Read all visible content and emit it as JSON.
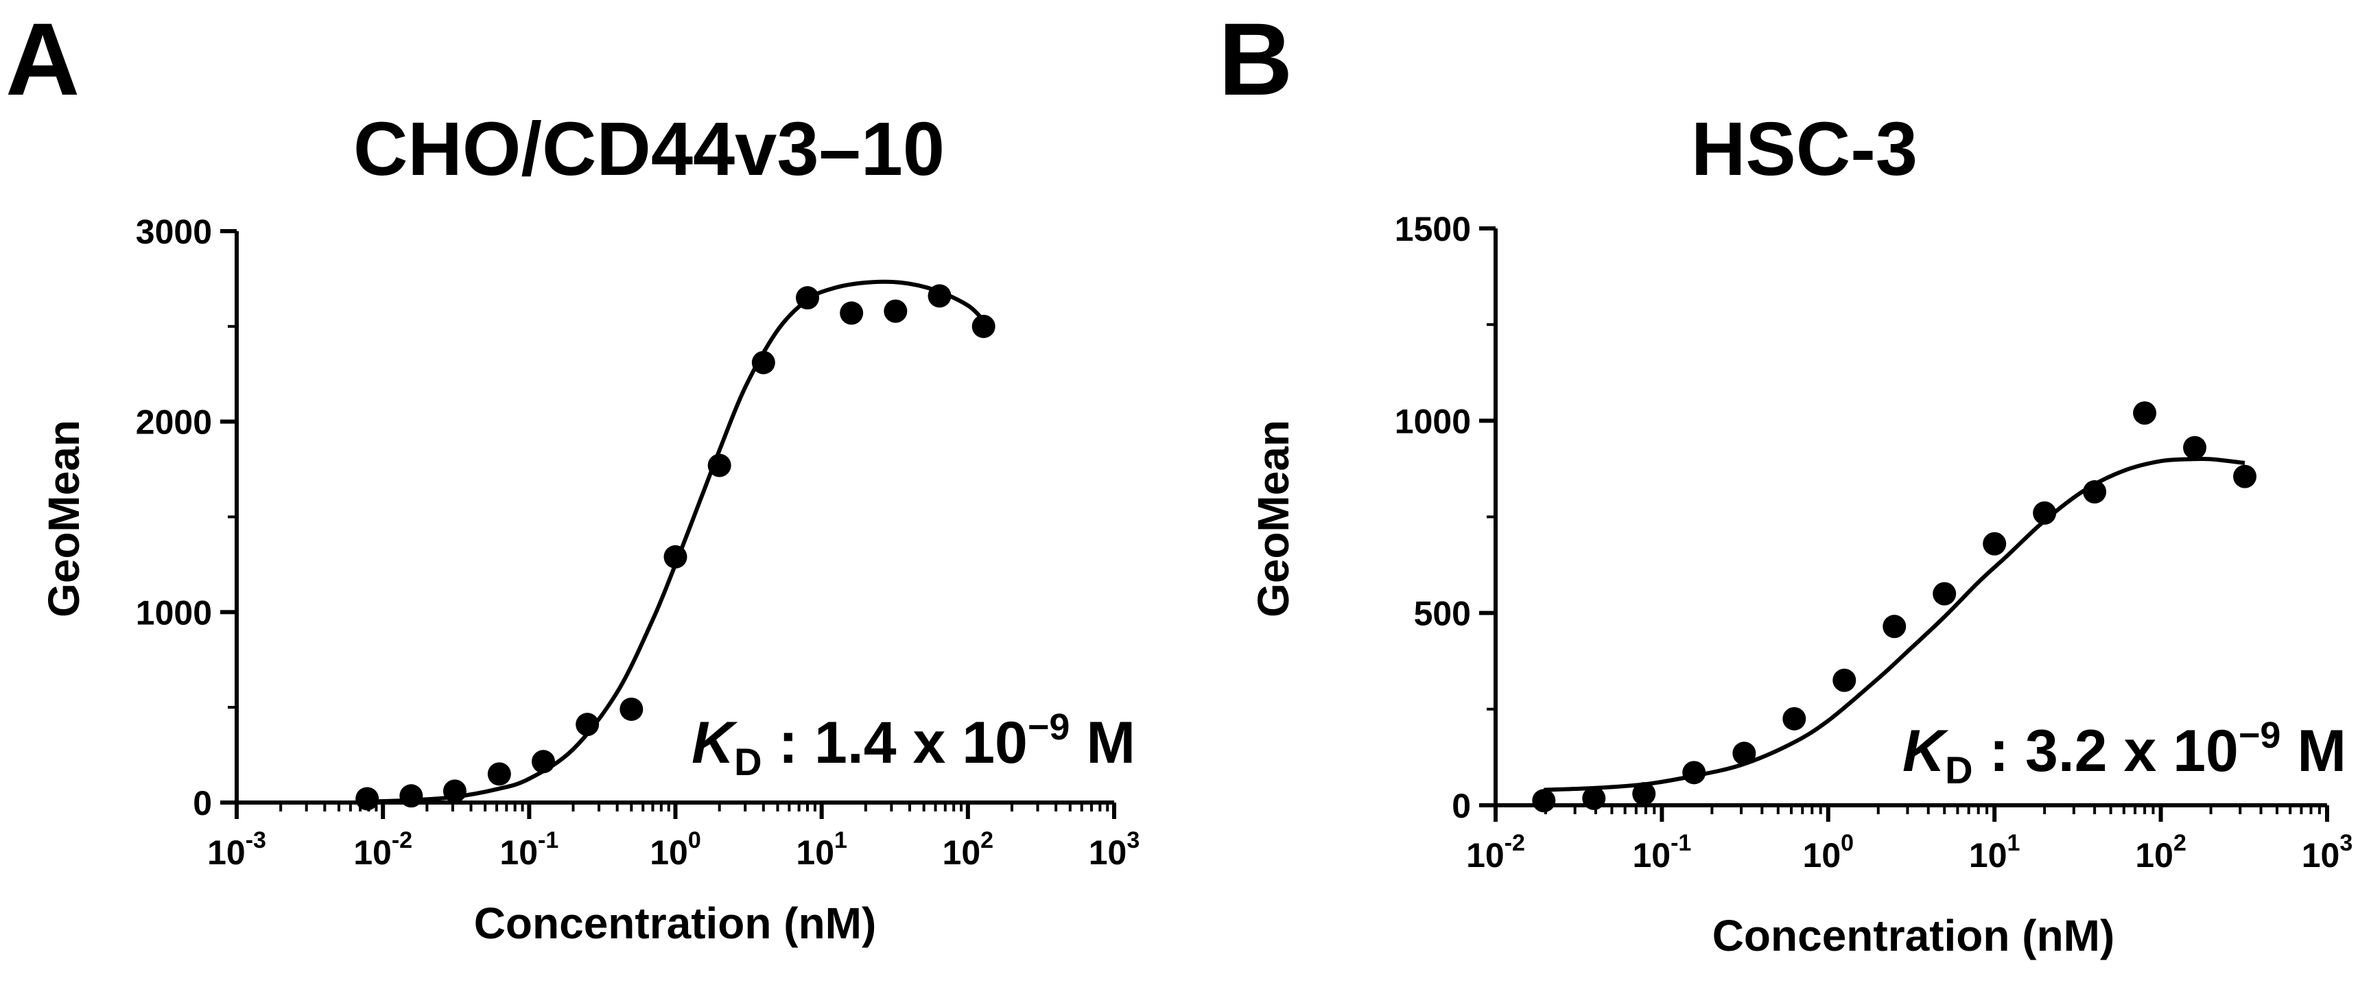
{
  "chart_data": [
    {
      "type": "scatter",
      "panel": "A",
      "title": "CHO/CD44v3–10",
      "xlabel": "Concentration (nM)",
      "ylabel": "GeoMean",
      "xscale": "log",
      "xlim": [
        0.001,
        1000
      ],
      "ylim": [
        0,
        3000
      ],
      "x_ticks": [
        {
          "base": "10",
          "exp": "-3"
        },
        {
          "base": "10",
          "exp": "-2"
        },
        {
          "base": "10",
          "exp": "-1"
        },
        {
          "base": "10",
          "exp": "0"
        },
        {
          "base": "10",
          "exp": "1"
        },
        {
          "base": "10",
          "exp": "2"
        },
        {
          "base": "10",
          "exp": "3"
        }
      ],
      "y_ticks": [
        "0",
        "1000",
        "2000",
        "3000"
      ],
      "x": [
        0.0078,
        0.0156,
        0.031,
        0.0625,
        0.125,
        0.25,
        0.5,
        1,
        2,
        4,
        8,
        16,
        32,
        64,
        128
      ],
      "y": [
        20,
        35,
        60,
        150,
        215,
        410,
        490,
        1290,
        1770,
        2310,
        2650,
        2570,
        2580,
        2660,
        2500
      ],
      "fit": {
        "x": [
          0.0078,
          0.015,
          0.03,
          0.06,
          0.1,
          0.2,
          0.4,
          0.7,
          1,
          1.5,
          2,
          3,
          5,
          8,
          12,
          20,
          35,
          60,
          100,
          128
        ],
        "y": [
          5,
          12,
          28,
          70,
          125,
          280,
          580,
          960,
          1250,
          1600,
          1850,
          2180,
          2480,
          2640,
          2700,
          2730,
          2730,
          2690,
          2610,
          2530
        ]
      },
      "annotation": {
        "prefix": "K",
        "subscript": "D",
        "text": " : 1.4 x 10",
        "exp": "−9",
        "suffix": " M"
      }
    },
    {
      "type": "scatter",
      "panel": "B",
      "title": "HSC-3",
      "xlabel": "Concentration (nM)",
      "ylabel": "GeoMean",
      "xscale": "log",
      "xlim": [
        0.01,
        1000
      ],
      "ylim": [
        0,
        1500
      ],
      "x_ticks": [
        {
          "base": "10",
          "exp": "-2"
        },
        {
          "base": "10",
          "exp": "-1"
        },
        {
          "base": "10",
          "exp": "0"
        },
        {
          "base": "10",
          "exp": "1"
        },
        {
          "base": "10",
          "exp": "2"
        },
        {
          "base": "10",
          "exp": "3"
        }
      ],
      "y_ticks": [
        "0",
        "500",
        "1000",
        "1500"
      ],
      "x": [
        0.0195,
        0.039,
        0.078,
        0.156,
        0.3125,
        0.625,
        1.25,
        2.5,
        5,
        10,
        20,
        40,
        80,
        160,
        320
      ],
      "y": [
        12,
        18,
        30,
        85,
        135,
        225,
        325,
        465,
        550,
        680,
        760,
        815,
        1020,
        930,
        855
      ],
      "fit": {
        "x": [
          0.0195,
          0.04,
          0.08,
          0.15,
          0.3,
          0.6,
          1,
          2,
          3,
          5,
          8,
          12,
          20,
          35,
          60,
          100,
          150,
          200,
          320
        ],
        "y": [
          40,
          45,
          55,
          75,
          105,
          160,
          220,
          330,
          400,
          490,
          580,
          650,
          740,
          820,
          870,
          895,
          900,
          900,
          890
        ]
      },
      "annotation": {
        "prefix": "K",
        "subscript": "D",
        "text": " : 3.2 x 10",
        "exp": "−9",
        "suffix": " M"
      }
    }
  ]
}
